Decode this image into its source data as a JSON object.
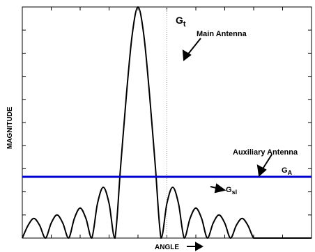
{
  "chart_data": {
    "type": "line",
    "title": "",
    "xlabel": "ANGLE",
    "ylabel": "MAGNITUDE",
    "xlim": [
      -1,
      1
    ],
    "ylim": [
      0,
      1
    ],
    "grid": false,
    "annotations": {
      "main_peak": "G",
      "main_peak_sub": "t",
      "main_label": "Main Antenna",
      "aux_label": "Auxiliary Antenna",
      "aux_level": "G",
      "aux_level_sub": "A",
      "sidelobe": "G",
      "sidelobe_sub": "sl"
    },
    "series": [
      {
        "role": "main-antenna-pattern",
        "color": "#000000",
        "x": [
          -1.0,
          -0.96,
          -0.92,
          -0.88,
          -0.84,
          -0.8,
          -0.76,
          -0.72,
          -0.68,
          -0.64,
          -0.6,
          -0.56,
          -0.52,
          -0.48,
          -0.44,
          -0.4,
          -0.36,
          -0.32,
          -0.28,
          -0.24,
          -0.2,
          -0.16,
          -0.12,
          -0.08,
          -0.04,
          0.0,
          0.04,
          0.08,
          0.12,
          0.16,
          0.2,
          0.24,
          0.28,
          0.32,
          0.36,
          0.4,
          0.44,
          0.48,
          0.52,
          0.56,
          0.6,
          0.64,
          0.68,
          0.72,
          0.76,
          0.8,
          0.84,
          0.88,
          0.92,
          0.96,
          1.0
        ],
        "y": [
          0.0,
          0.055,
          0.085,
          0.055,
          0.0,
          0.065,
          0.1,
          0.065,
          0.0,
          0.085,
          0.13,
          0.085,
          0.0,
          0.15,
          0.22,
          0.15,
          0.0,
          0.31,
          0.62,
          0.88,
          1.0,
          0.88,
          0.62,
          0.31,
          0.0,
          0.15,
          0.22,
          0.15,
          0.0,
          0.085,
          0.13,
          0.085,
          0.0,
          0.065,
          0.1,
          0.065,
          0.0,
          0.055,
          0.085,
          0.055,
          0.0,
          0.0,
          0.0,
          0.0,
          0.0,
          0.0,
          0.0,
          0.0,
          0.0,
          0.0,
          0.0
        ]
      },
      {
        "role": "auxiliary-antenna-level",
        "color": "#0000cc",
        "x": [
          -1,
          1
        ],
        "y": [
          0.265,
          0.265
        ]
      }
    ]
  }
}
